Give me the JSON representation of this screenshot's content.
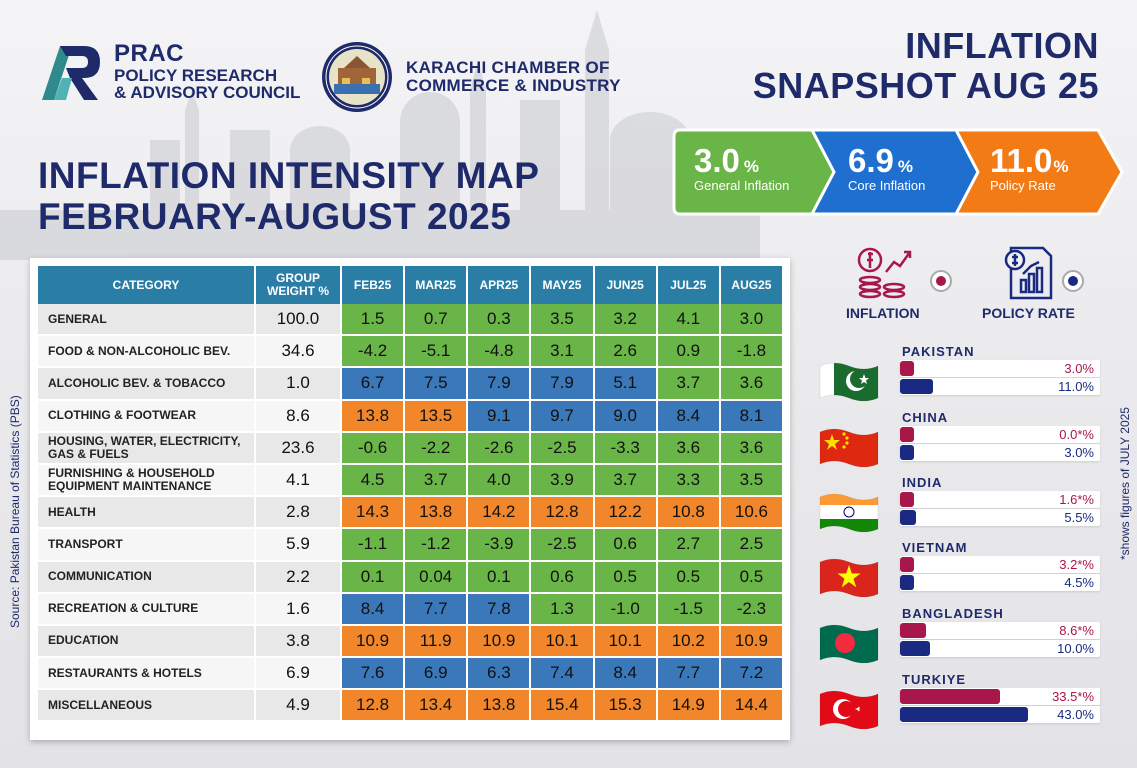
{
  "header": {
    "prac_line1": "PRAC",
    "prac_line2": "POLICY RESEARCH",
    "prac_line3": "& ADVISORY COUNCIL",
    "kcci_line1": "KARACHI CHAMBER OF",
    "kcci_line2": "COMMERCE & INDUSTRY",
    "snapshot_line1": "INFLATION",
    "snapshot_line2": "SNAPSHOT AUG 25"
  },
  "kpis": [
    {
      "value": "3.0",
      "unit": "%",
      "label": "General Inflation",
      "color": "#6ab547"
    },
    {
      "value": "6.9",
      "unit": "%",
      "label": "Core Inflation",
      "color": "#1f6fd0"
    },
    {
      "value": "11.0",
      "unit": "%",
      "label": "Policy Rate",
      "color": "#f27b16"
    }
  ],
  "map_title_line1": "INFLATION INTENSITY MAP",
  "map_title_line2": "FEBRUARY-AUGUST 2025",
  "source": "Source: Pakistan Bureau of Statistics (PBS)",
  "footnote": "*shows figures of JULY 2025",
  "table": {
    "headers": [
      "CATEGORY",
      "GROUP WEIGHT %",
      "FEB25",
      "MAR25",
      "APR25",
      "MAY25",
      "JUN25",
      "JUL25",
      "AUG25"
    ],
    "rows": [
      {
        "category": "GENERAL",
        "weight": "100.0",
        "values": [
          "1.5",
          "0.7",
          "0.3",
          "3.5",
          "3.2",
          "4.1",
          "3.0"
        ],
        "colors": [
          "g",
          "g",
          "g",
          "g",
          "g",
          "g",
          "g"
        ]
      },
      {
        "category": "FOOD & NON-ALCOHOLIC BEV.",
        "weight": "34.6",
        "values": [
          "-4.2",
          "-5.1",
          "-4.8",
          "3.1",
          "2.6",
          "0.9",
          "-1.8"
        ],
        "colors": [
          "g",
          "g",
          "g",
          "g",
          "g",
          "g",
          "g"
        ]
      },
      {
        "category": "ALCOHOLIC BEV. & TOBACCO",
        "weight": "1.0",
        "values": [
          "6.7",
          "7.5",
          "7.9",
          "7.9",
          "5.1",
          "3.7",
          "3.6"
        ],
        "colors": [
          "b",
          "b",
          "b",
          "b",
          "b",
          "g",
          "g"
        ]
      },
      {
        "category": "CLOTHING & FOOTWEAR",
        "weight": "8.6",
        "values": [
          "13.8",
          "13.5",
          "9.1",
          "9.7",
          "9.0",
          "8.4",
          "8.1"
        ],
        "colors": [
          "o",
          "o",
          "b",
          "b",
          "b",
          "b",
          "b"
        ]
      },
      {
        "category": "HOUSING, WATER, ELECTRICITY, GAS & FUELS",
        "weight": "23.6",
        "values": [
          "-0.6",
          "-2.2",
          "-2.6",
          "-2.5",
          "-3.3",
          "3.6",
          "3.6"
        ],
        "colors": [
          "g",
          "g",
          "g",
          "g",
          "g",
          "g",
          "g"
        ]
      },
      {
        "category": "FURNISHING & HOUSEHOLD EQUIPMENT MAINTENANCE",
        "weight": "4.1",
        "values": [
          "4.5",
          "3.7",
          "4.0",
          "3.9",
          "3.7",
          "3.3",
          "3.5"
        ],
        "colors": [
          "g",
          "g",
          "g",
          "g",
          "g",
          "g",
          "g"
        ]
      },
      {
        "category": "HEALTH",
        "weight": "2.8",
        "values": [
          "14.3",
          "13.8",
          "14.2",
          "12.8",
          "12.2",
          "10.8",
          "10.6"
        ],
        "colors": [
          "o",
          "o",
          "o",
          "o",
          "o",
          "o",
          "o"
        ]
      },
      {
        "category": "TRANSPORT",
        "weight": "5.9",
        "values": [
          "-1.1",
          "-1.2",
          "-3.9",
          "-2.5",
          "0.6",
          "2.7",
          "2.5"
        ],
        "colors": [
          "g",
          "g",
          "g",
          "g",
          "g",
          "g",
          "g"
        ]
      },
      {
        "category": "COMMUNICATION",
        "weight": "2.2",
        "values": [
          "0.1",
          "0.04",
          "0.1",
          "0.6",
          "0.5",
          "0.5",
          "0.5"
        ],
        "colors": [
          "g",
          "g",
          "g",
          "g",
          "g",
          "g",
          "g"
        ]
      },
      {
        "category": "RECREATION & CULTURE",
        "weight": "1.6",
        "values": [
          "8.4",
          "7.7",
          "7.8",
          "1.3",
          "-1.0",
          "-1.5",
          "-2.3"
        ],
        "colors": [
          "b",
          "b",
          "b",
          "g",
          "g",
          "g",
          "g"
        ]
      },
      {
        "category": "EDUCATION",
        "weight": "3.8",
        "values": [
          "10.9",
          "11.9",
          "10.9",
          "10.1",
          "10.1",
          "10.2",
          "10.9"
        ],
        "colors": [
          "o",
          "o",
          "o",
          "o",
          "o",
          "o",
          "o"
        ]
      },
      {
        "category": "RESTAURANTS & HOTELS",
        "weight": "6.9",
        "values": [
          "7.6",
          "6.9",
          "6.3",
          "7.4",
          "8.4",
          "7.7",
          "7.2"
        ],
        "colors": [
          "b",
          "b",
          "b",
          "b",
          "b",
          "b",
          "b"
        ]
      },
      {
        "category": "MISCELLANEOUS",
        "weight": "4.9",
        "values": [
          "12.8",
          "13.4",
          "13.8",
          "15.4",
          "15.3",
          "14.9",
          "14.4"
        ],
        "colors": [
          "o",
          "o",
          "o",
          "o",
          "o",
          "o",
          "o"
        ]
      }
    ]
  },
  "legend": {
    "inflation_label": "INFLATION",
    "policy_label": "POLICY RATE",
    "inflation_color": "#a8174a",
    "policy_color": "#1a2a82"
  },
  "countries": [
    {
      "name": "PAKISTAN",
      "inflation": 3.0,
      "inflation_text": "3.0%",
      "policy": 11.0,
      "policy_text": "11.0%",
      "flag": "pakistan-flag"
    },
    {
      "name": "CHINA",
      "inflation": 0.0,
      "inflation_text": "0.0*%",
      "policy": 3.0,
      "policy_text": "3.0%",
      "flag": "china-flag"
    },
    {
      "name": "INDIA",
      "inflation": 1.6,
      "inflation_text": "1.6*%",
      "policy": 5.5,
      "policy_text": "5.5%",
      "flag": "india-flag"
    },
    {
      "name": "VIETNAM",
      "inflation": 3.2,
      "inflation_text": "3.2*%",
      "policy": 4.5,
      "policy_text": "4.5%",
      "flag": "vietnam-flag"
    },
    {
      "name": "BANGLADESH",
      "inflation": 8.6,
      "inflation_text": "8.6*%",
      "policy": 10.0,
      "policy_text": "10.0%",
      "flag": "bangladesh-flag"
    },
    {
      "name": "TURKIYE",
      "inflation": 33.5,
      "inflation_text": "33.5*%",
      "policy": 43.0,
      "policy_text": "43.0%",
      "flag": "turkiye-flag"
    }
  ]
}
